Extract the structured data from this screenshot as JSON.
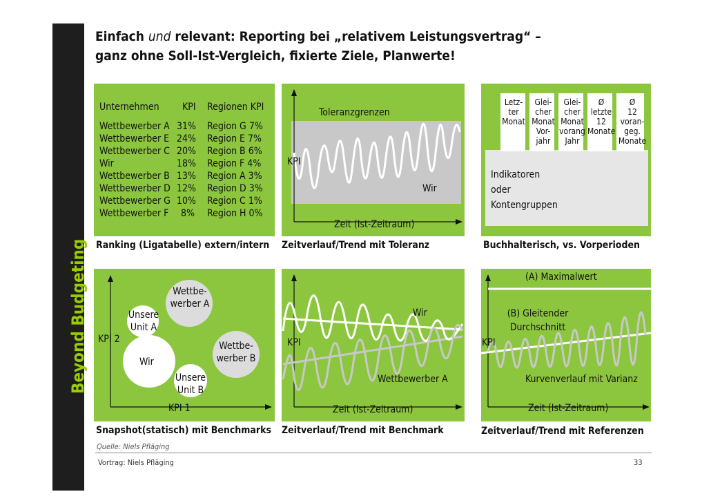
{
  "sidebar": {
    "title": "Beyond Budgeting"
  },
  "header": {
    "line1_a": "Einfach ",
    "line1_em": "und",
    "line1_b": " relevant: Reporting bei „relativem Leistungsvertrag“ –",
    "line2": "ganz ohne Soll-Ist-Vergleich, fixierte Ziele, Planwerte!"
  },
  "panel1": {
    "col_unternehmen": "Unternehmen",
    "col_kpi": "KPI",
    "col_regionen": "Regionen KPI",
    "rows": [
      {
        "name": "Wettbewerber A",
        "kpi": "31%",
        "region": "Region G 7%"
      },
      {
        "name": "Wettbewerber E",
        "kpi": "24%",
        "region": "Region E 7%"
      },
      {
        "name": "Wettbewerber C",
        "kpi": "20%",
        "region": "Region B 6%"
      },
      {
        "name": "Wir",
        "kpi": "18%",
        "region": "Region F 4%"
      },
      {
        "name": "Wettbewerber B",
        "kpi": "13%",
        "region": "Region A 3%"
      },
      {
        "name": "Wettbewerber D",
        "kpi": "12%",
        "region": "Region D 3%"
      },
      {
        "name": "Wettbewerber G",
        "kpi": "10%",
        "region": "Region C 1%"
      },
      {
        "name": "Wettbewerber F",
        "kpi": "8%",
        "region": "Region H 0%"
      }
    ],
    "caption": "Ranking (Ligatabelle) extern/intern"
  },
  "panel2": {
    "band_label": "Toleranzgrenzen",
    "y_label": "KPI",
    "series_label": "Wir",
    "x_label": "Zeit (Ist-Zeitraum)",
    "caption": "Zeitverlauf/Trend mit Toleranz"
  },
  "panel3": {
    "columns": [
      "Letz- ter Monat",
      "Glei- cher Monat Vor- jahr",
      "Glei- cher Monat Jahr",
      "Ø letzte 12 Monate",
      "Ø 12 voran- geg. Monate"
    ],
    "col_lines": [
      [
        "Letz-",
        "ter",
        "Monat"
      ],
      [
        "Glei-",
        "cher",
        "Monat",
        "Vor-",
        "jahr"
      ],
      [
        "Glei-",
        "cher",
        "Monat",
        "vorang",
        "Jahr"
      ],
      [
        "Ø",
        "letzte",
        "12",
        "Monate"
      ],
      [
        "Ø",
        "12",
        "voran-",
        "geg.",
        "Monate"
      ]
    ],
    "row_line1": "Indikatoren",
    "row_line2": "oder",
    "row_line3": "Kontengruppen",
    "caption": "Buchhalterisch, vs. Vorperioden"
  },
  "panel4": {
    "bubble_a_1": "Wettbe-",
    "bubble_a_2": "werber A",
    "unit_a_1": "Unsere",
    "unit_a_2": "Unit A",
    "wir": "Wir",
    "bubble_b_1": "Wettbe-",
    "bubble_b_2": "werber B",
    "unit_b_1": "Unsere",
    "unit_b_2": "Unit B",
    "y_label": "KPI 2",
    "x_label": "KPI 1",
    "caption": "Snapshot(statisch) mit Benchmarks"
  },
  "panel5": {
    "series_wir": "Wir",
    "y_label": "KPI",
    "series_benchmark": "Wettbewerber A",
    "x_label": "Zeit (Ist-Zeitraum)",
    "caption": "Zeitverlauf/Trend mit Benchmark"
  },
  "panel6": {
    "max_label": "(A) Maximalwert",
    "avg_line1": "(B) Gleitender",
    "avg_line2": "Durchschnitt",
    "y_label": "KPI",
    "series_label": "Kurvenverlauf mit Varianz",
    "x_label": "Zeit (Ist-Zeitraum)",
    "caption": "Zeitverlauf/Trend mit Referenzen"
  },
  "footer": {
    "source": "Quelle: Niels Pfläging",
    "talk": "Vortrag: Niels Pfläging",
    "page_number": "33"
  },
  "colors": {
    "panel_green": "#8cc63f",
    "sidebar_bg": "#1e1e1e",
    "sidebar_text": "#9acd00",
    "band_gray": "#c8c8c8"
  }
}
